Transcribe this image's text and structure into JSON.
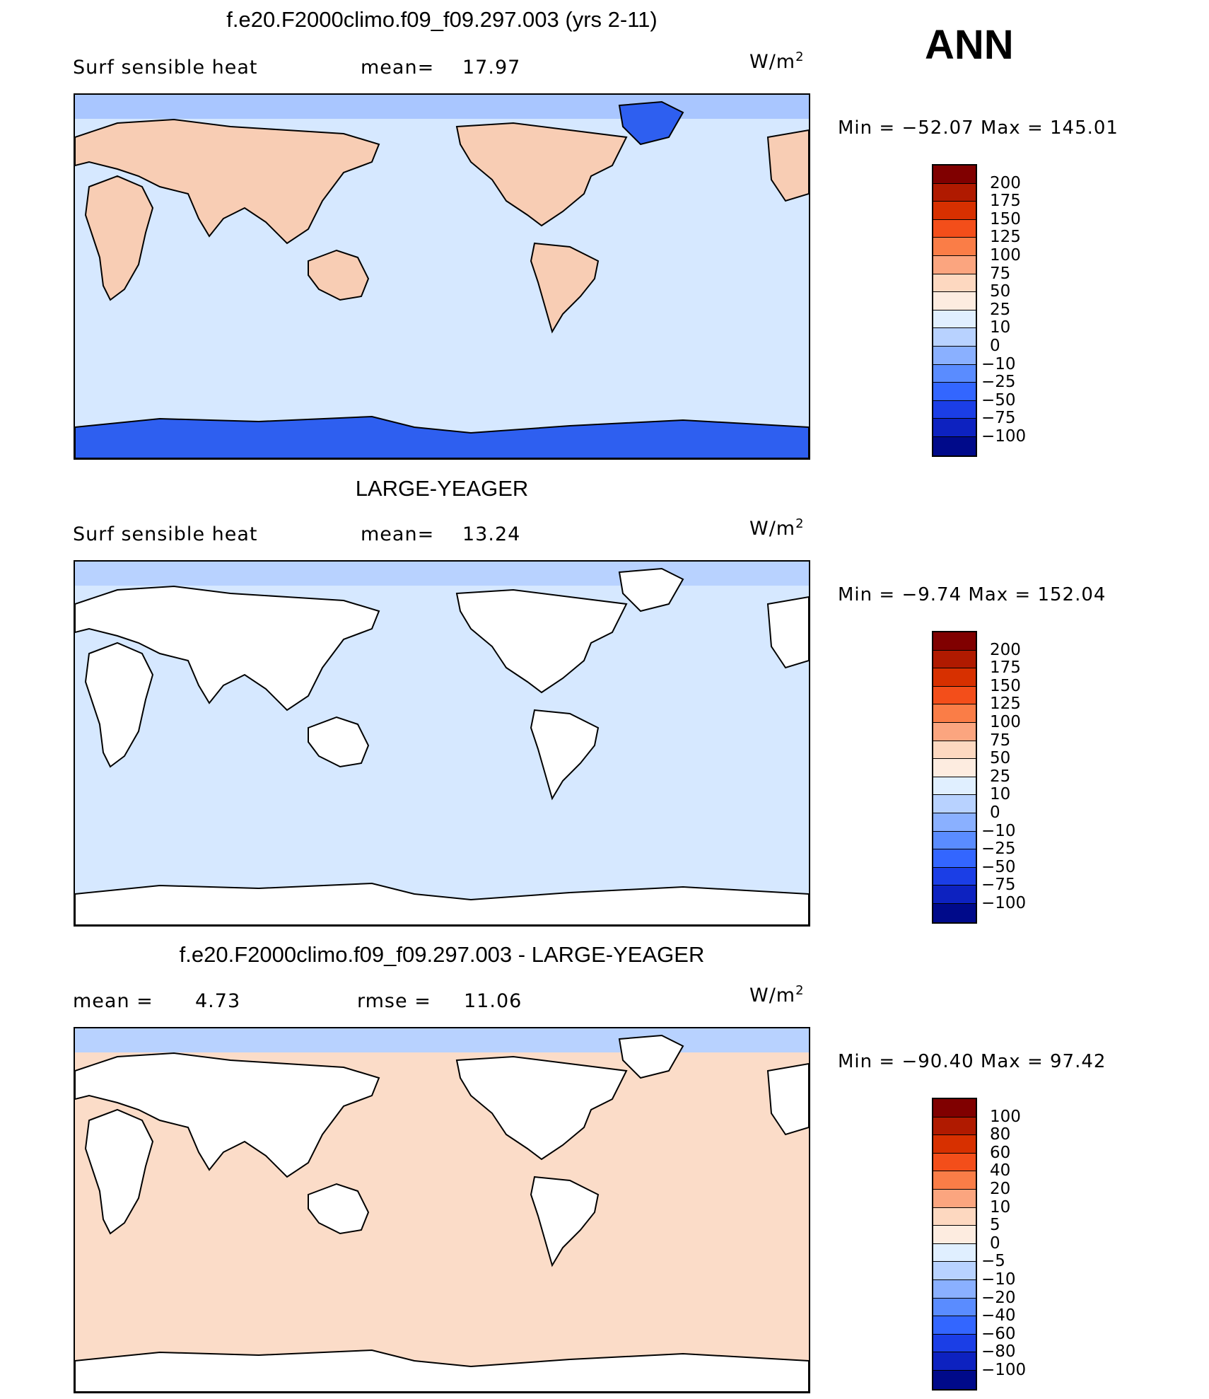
{
  "season": "ANN",
  "panels": [
    {
      "title": "f.e20.F2000climo.f09_f09.297.003 (yrs 2-11)",
      "variable": "Surf  sensible  heat",
      "mean_label": "mean=",
      "mean_value": "17.97",
      "units": "W/m",
      "units_sup": "2",
      "minmax": "Min  =  −52.07  Max  =  145.01",
      "colors": [
        "#800000",
        "#b01a00",
        "#d73000",
        "#f34e1a",
        "#fa7d47",
        "#fba57f",
        "#fdd8c0",
        "#fdece0",
        "#e0efff",
        "#b8d2ff",
        "#8ab0ff",
        "#5a8cff",
        "#3366ff",
        "#1b3ee6",
        "#0d22c0",
        "#000a8a"
      ],
      "labels": [
        "200",
        "175",
        "150",
        "125",
        "100",
        "75",
        "50",
        "25",
        "10",
        "0",
        "−10",
        "−25",
        "−50",
        "−75",
        "−100"
      ],
      "land_fill": "#f8cdb4",
      "ocean_fill": "#d6e8ff",
      "polar_fill": "#2e5ff0",
      "arctic_fill": "#a9c6ff"
    },
    {
      "title": "LARGE-YEAGER",
      "variable": "Surf  sensible  heat",
      "mean_label": "mean=",
      "mean_value": "13.24",
      "units": "W/m",
      "units_sup": "2",
      "minmax": "Min  =   −9.74  Max  =  152.04",
      "colors": [
        "#800000",
        "#b01a00",
        "#d73000",
        "#f34e1a",
        "#fa7d47",
        "#fba57f",
        "#fdd8c0",
        "#fdece0",
        "#e0efff",
        "#b8d2ff",
        "#8ab0ff",
        "#5a8cff",
        "#3366ff",
        "#1b3ee6",
        "#0d22c0",
        "#000a8a"
      ],
      "labels": [
        "200",
        "175",
        "150",
        "125",
        "100",
        "75",
        "50",
        "25",
        "10",
        "0",
        "−10",
        "−25",
        "−50",
        "−75",
        "−100"
      ],
      "land_fill": "#ffffff",
      "ocean_fill": "#d6e8ff",
      "polar_fill": "#ffffff",
      "arctic_fill": "#b8d2ff"
    },
    {
      "title": "f.e20.F2000climo.f09_f09.297.003 - LARGE-YEAGER",
      "variable": "mean  =",
      "mean_label": "",
      "mean_value": "4.73",
      "rmse_label": "rmse  =",
      "rmse_value": "11.06",
      "units": "W/m",
      "units_sup": "2",
      "minmax": "Min  =  −90.40  Max  =    97.42",
      "colors": [
        "#800000",
        "#b01a00",
        "#d73000",
        "#f34e1a",
        "#fa7d47",
        "#fba57f",
        "#fdd8c0",
        "#fdece0",
        "#e0efff",
        "#b8d2ff",
        "#8ab0ff",
        "#5a8cff",
        "#3366ff",
        "#1b3ee6",
        "#0d22c0",
        "#000a8a"
      ],
      "labels": [
        "100",
        "80",
        "60",
        "40",
        "20",
        "10",
        "5",
        "0",
        "−5",
        "−10",
        "−20",
        "−40",
        "−60",
        "−80",
        "−100"
      ],
      "land_fill": "#ffffff",
      "ocean_fill": "#fbdcc8",
      "polar_fill": "#ffffff",
      "arctic_fill": "#b8d2ff"
    }
  ]
}
